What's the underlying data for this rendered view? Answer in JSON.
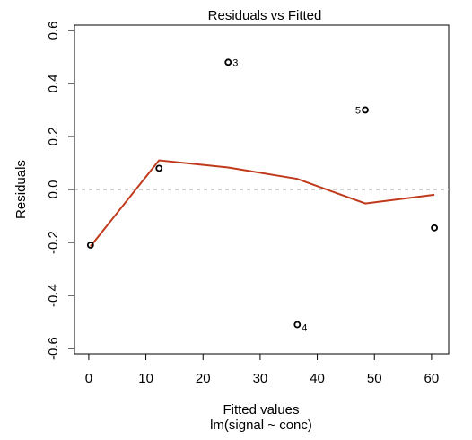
{
  "chart_data": {
    "type": "scatter",
    "title": "Residuals vs Fitted",
    "xlabel": "Fitted values",
    "subtitle": "lm(signal ~ conc)",
    "ylabel": "Residuals",
    "xlim": [
      -2.5,
      63
    ],
    "ylim": [
      -0.62,
      0.62
    ],
    "x_ticks": [
      0,
      10,
      20,
      30,
      40,
      50,
      60
    ],
    "y_ticks": [
      -0.6,
      -0.4,
      -0.2,
      0.0,
      0.2,
      0.4,
      0.6
    ],
    "x_tick_labels": [
      "0",
      "10",
      "20",
      "30",
      "40",
      "50",
      "60"
    ],
    "y_tick_labels": [
      "-0.6",
      "-0.4",
      "-0.2",
      "0.0",
      "0.2",
      "0.4",
      "0.6"
    ],
    "points": [
      {
        "x": 0.3,
        "y": -0.21,
        "label": ""
      },
      {
        "x": 12.3,
        "y": 0.08,
        "label": ""
      },
      {
        "x": 24.4,
        "y": 0.48,
        "label": "3",
        "label_side": "right"
      },
      {
        "x": 36.5,
        "y": -0.51,
        "label": "4",
        "label_side": "right-below"
      },
      {
        "x": 48.4,
        "y": 0.3,
        "label": "5",
        "label_side": "left"
      },
      {
        "x": 60.5,
        "y": -0.145,
        "label": ""
      }
    ],
    "smoother": {
      "name": "",
      "color": "#c0391b",
      "x": [
        0.3,
        12.3,
        24.4,
        36.5,
        48.4,
        60.5
      ],
      "y": [
        -0.215,
        0.11,
        0.083,
        0.04,
        -0.053,
        -0.02
      ]
    },
    "reference_line": {
      "y": 0,
      "style": "dashed",
      "color": "#bdbdbd"
    },
    "grid": false,
    "legend": "none"
  }
}
